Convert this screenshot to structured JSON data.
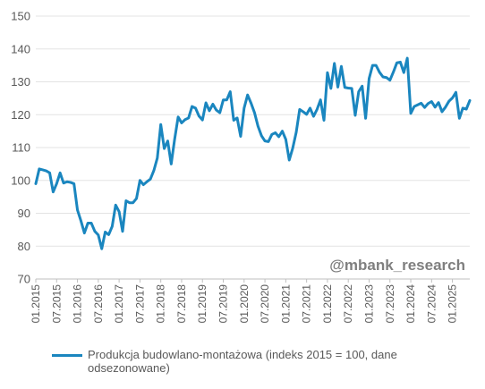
{
  "chart_data": {
    "type": "line",
    "watermark": "@mbank_research",
    "ylim": [
      70,
      150
    ],
    "yticks": [
      70,
      80,
      90,
      100,
      110,
      120,
      130,
      140,
      150
    ],
    "xtick_labels": [
      "01.2015",
      "07.2015",
      "01.2016",
      "07.2016",
      "01.2017",
      "07.2017",
      "01.2018",
      "07.2018",
      "01.2019",
      "07.2019",
      "01.2020",
      "07.2020",
      "01.2021",
      "07.2021",
      "01.2022",
      "07.2022",
      "01.2023",
      "07.2023",
      "01.2024",
      "07.2024",
      "01.2025"
    ],
    "grid": "horizontal",
    "legend_position": "bottom",
    "series": [
      {
        "name": "Produkcja budowlano-montażowa (indeks 2015 = 100, dane odsezonowane)",
        "color": "#1a86bf",
        "start": "01.2015",
        "values": [
          99,
          103.5,
          103.2,
          102.9,
          102.3,
          96.5,
          99,
          102.3,
          99.2,
          99.6,
          99.4,
          99,
          91,
          87.7,
          84,
          87,
          87,
          84.5,
          83.4,
          79.2,
          84.3,
          83.5,
          86,
          92.5,
          90.5,
          84.5,
          93.8,
          93.2,
          93.2,
          94.5,
          100,
          98.7,
          99.6,
          100.4,
          103,
          106.8,
          117,
          109.7,
          112,
          105,
          112.6,
          119.3,
          117.5,
          118.5,
          119,
          122.5,
          122,
          119.6,
          118.4,
          123.6,
          121.2,
          123.2,
          121.4,
          120.6,
          124.5,
          124.5,
          127,
          118.3,
          119,
          113.4,
          122,
          126,
          123.5,
          120.6,
          116.5,
          113.6,
          112,
          111.8,
          114,
          114.5,
          113.3,
          115,
          112.5,
          106.2,
          109.8,
          114.6,
          121.6,
          120.9,
          120.1,
          122,
          119.5,
          121.6,
          124.5,
          118.3,
          132.8,
          128,
          135.6,
          128.4,
          134.7,
          128.3,
          128.1,
          128,
          119.8,
          127,
          128.7,
          118.9,
          131,
          135,
          135,
          132.9,
          131.5,
          131.3,
          130.5,
          133,
          135.8,
          136,
          132.8,
          137.2,
          120.4,
          122.5,
          123,
          123.5,
          122.2,
          123.4,
          124,
          122.3,
          123.7,
          120.9,
          122.3,
          124.1,
          125.1,
          126.8,
          118.9,
          122,
          121.7,
          124.3
        ]
      }
    ]
  }
}
